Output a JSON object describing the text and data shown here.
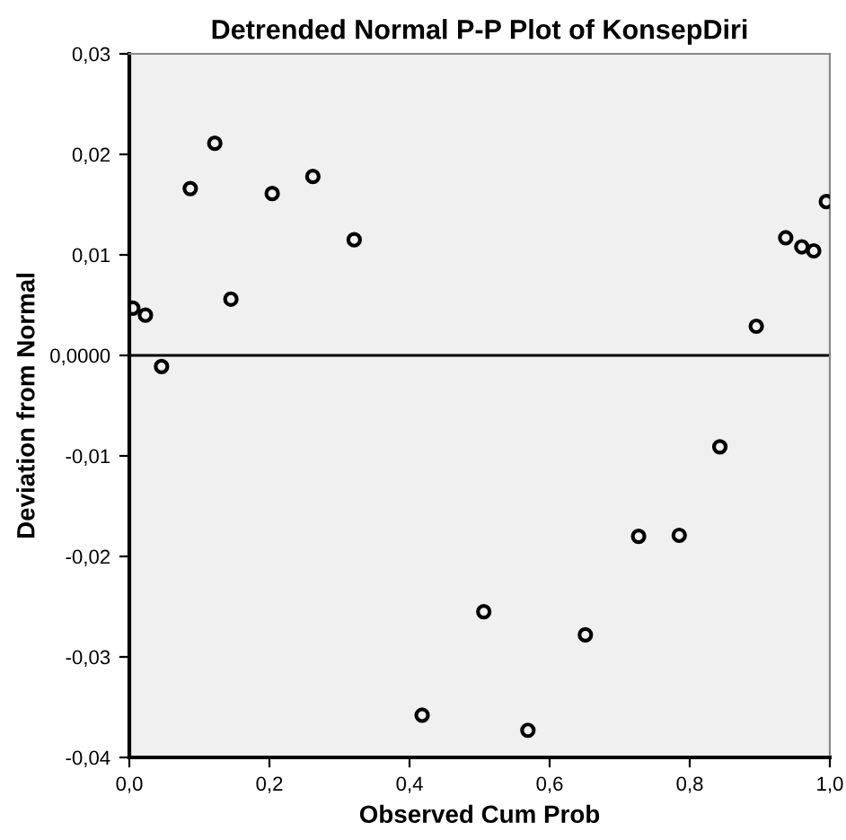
{
  "chart_data": {
    "type": "scatter",
    "title": "Detrended Normal P-P Plot of KonsepDiri",
    "xlabel": "Observed Cum Prob",
    "ylabel": "Deviation from Normal",
    "x": [
      0.005,
      0.023,
      0.046,
      0.087,
      0.122,
      0.145,
      0.204,
      0.262,
      0.321,
      0.418,
      0.506,
      0.569,
      0.651,
      0.727,
      0.785,
      0.843,
      0.895,
      0.937,
      0.96,
      0.977,
      0.995
    ],
    "values": [
      0.0047,
      0.004,
      -0.0011,
      0.0166,
      0.0211,
      0.0056,
      0.0161,
      0.0178,
      0.0115,
      -0.0358,
      -0.0255,
      -0.0373,
      -0.0278,
      -0.018,
      -0.0179,
      -0.0091,
      0.0029,
      0.0117,
      0.0108,
      0.0104,
      0.0153
    ],
    "color": "#000000",
    "marker": "circle",
    "xlim": [
      0,
      1
    ],
    "ylim": [
      -0.04,
      0.03
    ],
    "xticks": [
      {
        "value": 0,
        "label": "0,0"
      },
      {
        "value": 0.2,
        "label": "0,2"
      },
      {
        "value": 0.4,
        "label": "0,4"
      },
      {
        "value": 0.6,
        "label": "0,6"
      },
      {
        "value": 0.8,
        "label": "0,8"
      },
      {
        "value": 1,
        "label": "1,0"
      }
    ],
    "yticks": [
      {
        "value": -0.04,
        "label": "-0,04"
      },
      {
        "value": -0.03,
        "label": "-0,03"
      },
      {
        "value": -0.02,
        "label": "-0,02"
      },
      {
        "value": -0.01,
        "label": "-0,01"
      },
      {
        "value": 0,
        "label": "0,0000"
      },
      {
        "value": 0.01,
        "label": "0,01"
      },
      {
        "value": 0.02,
        "label": "0,02"
      },
      {
        "value": 0.03,
        "label": "0,03"
      }
    ],
    "ref_lines": [
      {
        "axis": "y",
        "value": 0,
        "color": "#000000",
        "line_style": "solid"
      }
    ],
    "grid": false
  }
}
